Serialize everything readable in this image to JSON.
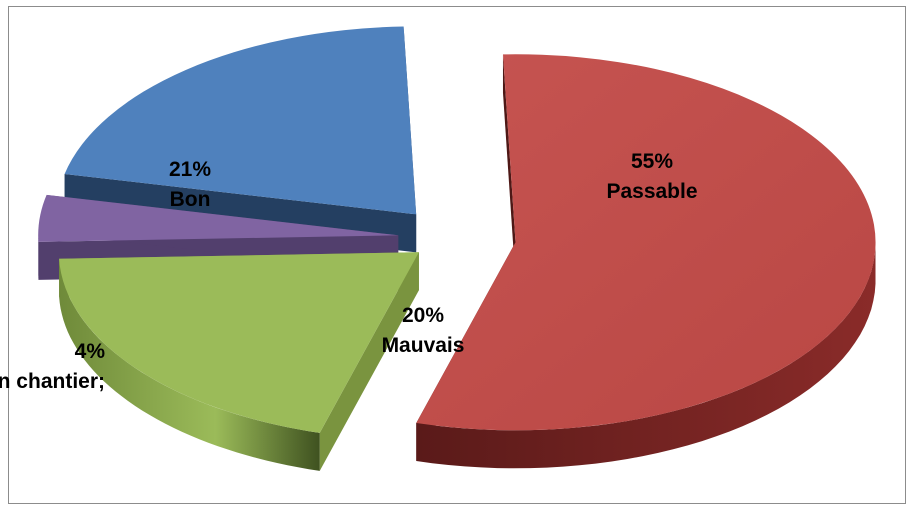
{
  "chart_data": {
    "type": "pie",
    "title": "",
    "style": "3d-exploded",
    "slices": [
      {
        "label": "Passable",
        "value": 55,
        "percent_label": "55%",
        "color": "#C0504D"
      },
      {
        "label": "Mauvais",
        "value": 20,
        "percent_label": "20%",
        "color": "#9BBB59"
      },
      {
        "label": "En chantier;",
        "value": 4,
        "percent_label": "4%",
        "color": "#8064A2"
      },
      {
        "label": "Bon",
        "value": 21,
        "percent_label": "21%",
        "color": "#4F81BD"
      }
    ],
    "legend": "none"
  }
}
